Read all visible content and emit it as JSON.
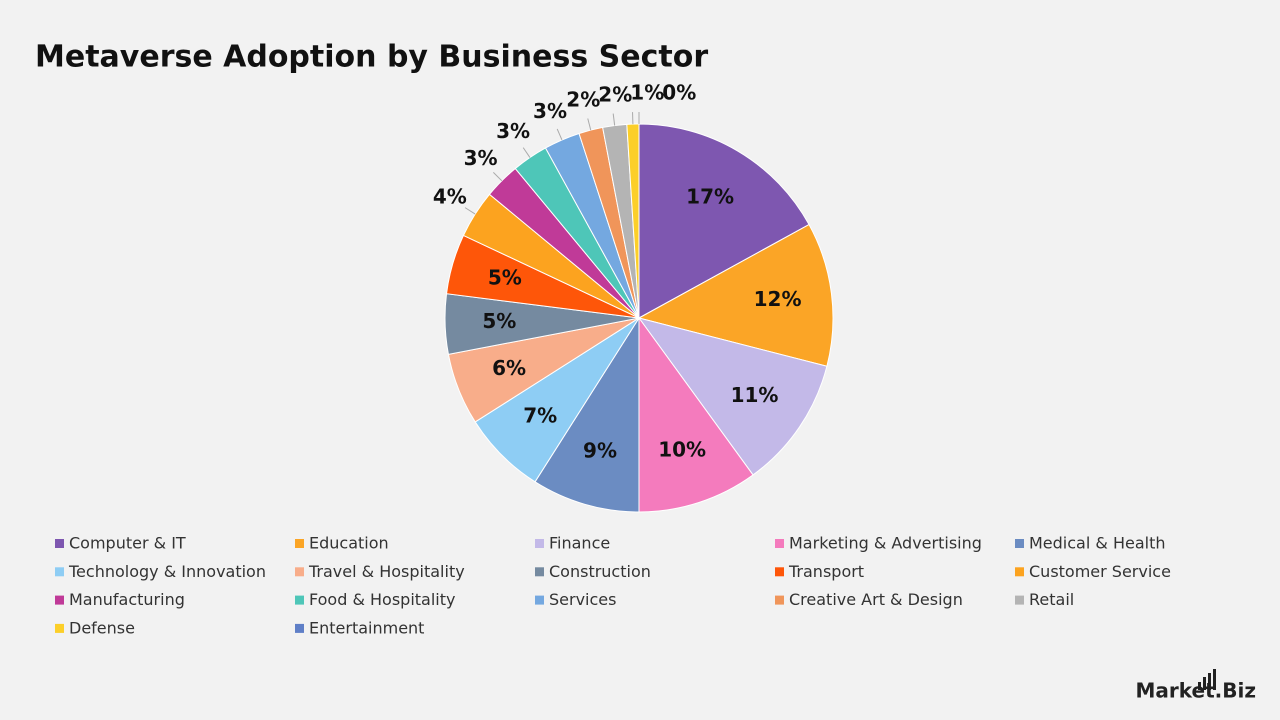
{
  "chart_data": {
    "type": "pie",
    "title": "Metaverse Adoption by Business Sector",
    "categories": [
      "Computer & IT",
      "Education",
      "Finance",
      "Marketing & Advertising",
      "Medical & Health",
      "Technology & Innovation",
      "Travel & Hospitality",
      "Construction",
      "Transport",
      "Customer Service",
      "Manufacturing",
      "Food & Hospitality",
      "Services",
      "Creative Art & Design",
      "Retail",
      "Defense",
      "Entertainment"
    ],
    "values": [
      17,
      12,
      11,
      10,
      9,
      7,
      6,
      5,
      5,
      4,
      3,
      3,
      3,
      2,
      2,
      1,
      0
    ],
    "value_labels": [
      "17%",
      "12%",
      "11%",
      "10%",
      "9%",
      "7%",
      "6%",
      "5%",
      "5%",
      "4%",
      "3%",
      "3%",
      "3%",
      "2%",
      "2%",
      "1%",
      "0%"
    ],
    "colors": [
      "#7e57b0",
      "#fba526",
      "#c3b9e8",
      "#f47bbd",
      "#6b8cc2",
      "#8ecdf4",
      "#f8ad8a",
      "#758aa0",
      "#fe5609",
      "#fca31f",
      "#c03a98",
      "#4ec6b8",
      "#74a8e0",
      "#f0955a",
      "#b4b4b4",
      "#fccf29",
      "#5f7fc7"
    ],
    "legend": "bottom"
  },
  "brand": "Market.Biz"
}
